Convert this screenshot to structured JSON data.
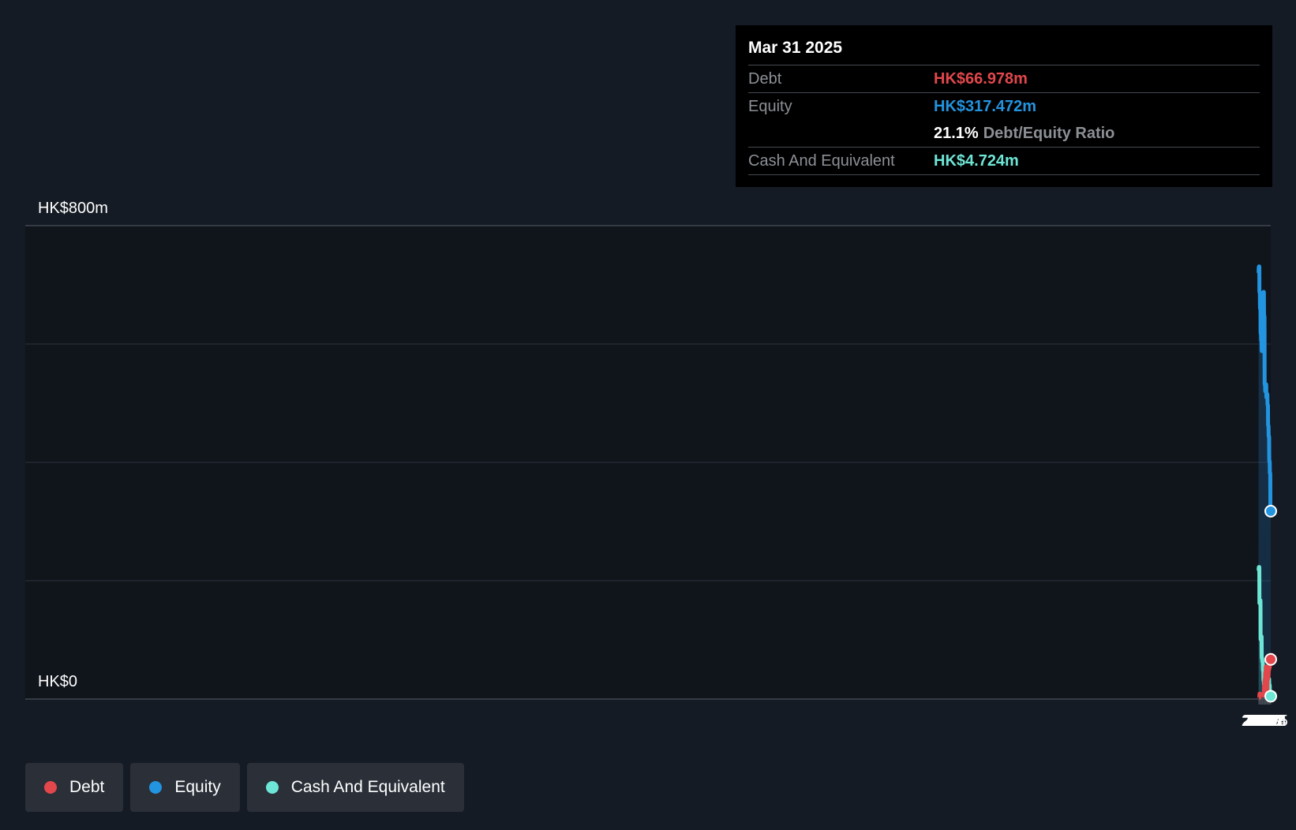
{
  "tooltip": {
    "date": "Mar 31 2025",
    "debt_label": "Debt",
    "debt_value": "HK$66.978m",
    "equity_label": "Equity",
    "equity_value": "HK$317.472m",
    "ratio_value": "21.1%",
    "ratio_label": "Debt/Equity Ratio",
    "cash_label": "Cash And Equivalent",
    "cash_value": "HK$4.724m"
  },
  "legend": {
    "debt": "Debt",
    "equity": "Equity",
    "cash": "Cash And Equivalent"
  },
  "colors": {
    "debt": "#e2474c",
    "equity": "#2394df",
    "cash": "#6ee6d6",
    "background": "#151b24",
    "plot_background": "#10141b"
  },
  "chart_data": {
    "type": "area",
    "title": "",
    "xlabel": "",
    "ylabel": "",
    "y_top_label": "HK$800m",
    "y_bottom_label": "HK$0",
    "ylim": [
      0,
      800
    ],
    "xlim": [
      2014.55,
      2025.25
    ],
    "x_ticks": [
      "2015",
      "2016",
      "2017",
      "2018",
      "2019",
      "2020",
      "2021",
      "2022",
      "2023",
      "2024",
      "2025"
    ],
    "grid": true,
    "series": [
      {
        "name": "Equity",
        "points": [
          [
            2014.7,
            718
          ],
          [
            2014.9,
            729
          ],
          [
            2015.0,
            731
          ],
          [
            2015.3,
            731
          ],
          [
            2015.5,
            688
          ],
          [
            2015.8,
            688
          ],
          [
            2016.0,
            660
          ],
          [
            2016.3,
            660
          ],
          [
            2016.5,
            618
          ],
          [
            2016.8,
            618
          ],
          [
            2017.0,
            606
          ],
          [
            2017.3,
            606
          ],
          [
            2017.5,
            588
          ],
          [
            2017.8,
            588
          ],
          [
            2018.0,
            673
          ],
          [
            2018.3,
            673
          ],
          [
            2018.5,
            629
          ],
          [
            2018.8,
            629
          ],
          [
            2019.0,
            688
          ],
          [
            2019.3,
            688
          ],
          [
            2019.5,
            647
          ],
          [
            2019.8,
            647
          ],
          [
            2020.0,
            532
          ],
          [
            2020.3,
            532
          ],
          [
            2020.5,
            520
          ],
          [
            2020.8,
            520
          ],
          [
            2021.0,
            532
          ],
          [
            2021.3,
            532
          ],
          [
            2021.5,
            510
          ],
          [
            2021.8,
            510
          ],
          [
            2022.0,
            515
          ],
          [
            2022.3,
            515
          ],
          [
            2022.5,
            497
          ],
          [
            2022.8,
            497
          ],
          [
            2023.0,
            462
          ],
          [
            2023.3,
            462
          ],
          [
            2023.5,
            444
          ],
          [
            2023.8,
            444
          ],
          [
            2024.0,
            402
          ],
          [
            2024.3,
            402
          ],
          [
            2024.5,
            382
          ],
          [
            2024.8,
            382
          ],
          [
            2025.0,
            317.472
          ],
          [
            2025.25,
            317.472
          ]
        ]
      },
      {
        "name": "Cash And Equivalent",
        "points": [
          [
            2014.7,
            215
          ],
          [
            2014.9,
            222
          ],
          [
            2015.0,
            223
          ],
          [
            2015.3,
            223
          ],
          [
            2015.5,
            162
          ],
          [
            2015.8,
            162
          ],
          [
            2016.0,
            167
          ],
          [
            2016.3,
            167
          ],
          [
            2016.5,
            101
          ],
          [
            2016.8,
            101
          ],
          [
            2017.0,
            106
          ],
          [
            2017.3,
            106
          ],
          [
            2017.5,
            69
          ],
          [
            2017.8,
            69
          ],
          [
            2018.0,
            63
          ],
          [
            2018.3,
            63
          ],
          [
            2018.5,
            49
          ],
          [
            2018.8,
            49
          ],
          [
            2019.0,
            31
          ],
          [
            2019.3,
            31
          ],
          [
            2019.5,
            23
          ],
          [
            2019.8,
            23
          ],
          [
            2020.0,
            31
          ],
          [
            2020.3,
            31
          ],
          [
            2020.5,
            25
          ],
          [
            2020.8,
            25
          ],
          [
            2021.0,
            19
          ],
          [
            2021.3,
            19
          ],
          [
            2021.5,
            14
          ],
          [
            2021.8,
            14
          ],
          [
            2022.0,
            15
          ],
          [
            2022.3,
            15
          ],
          [
            2022.5,
            14
          ],
          [
            2022.8,
            14
          ],
          [
            2023.0,
            15
          ],
          [
            2023.3,
            15
          ],
          [
            2023.5,
            34
          ],
          [
            2023.8,
            34
          ],
          [
            2024.0,
            24
          ],
          [
            2024.3,
            24
          ],
          [
            2024.5,
            12
          ],
          [
            2024.8,
            12
          ],
          [
            2025.0,
            4.724
          ],
          [
            2025.25,
            4.724
          ]
        ]
      },
      {
        "name": "Debt",
        "points": [
          [
            2014.95,
            0
          ],
          [
            2015.3,
            0
          ],
          [
            2015.5,
            9
          ],
          [
            2016.0,
            9
          ],
          [
            2016.5,
            8
          ],
          [
            2017.0,
            8
          ],
          [
            2017.5,
            7
          ],
          [
            2018.0,
            7
          ],
          [
            2018.5,
            6
          ],
          [
            2019.0,
            6
          ],
          [
            2019.3,
            6
          ],
          [
            2019.5,
            23
          ],
          [
            2019.8,
            23
          ],
          [
            2020.0,
            33
          ],
          [
            2020.3,
            33
          ],
          [
            2020.5,
            45
          ],
          [
            2020.8,
            45
          ],
          [
            2021.0,
            55
          ],
          [
            2021.3,
            55
          ],
          [
            2021.5,
            40
          ],
          [
            2021.8,
            40
          ],
          [
            2022.0,
            15
          ],
          [
            2022.3,
            15
          ],
          [
            2022.5,
            33
          ],
          [
            2022.8,
            33
          ],
          [
            2023.0,
            39
          ],
          [
            2023.3,
            39
          ],
          [
            2023.5,
            49
          ],
          [
            2023.8,
            49
          ],
          [
            2024.0,
            53
          ],
          [
            2024.3,
            53
          ],
          [
            2024.5,
            62
          ],
          [
            2024.8,
            62
          ],
          [
            2025.0,
            66.978
          ],
          [
            2025.25,
            66.978
          ]
        ]
      }
    ]
  }
}
